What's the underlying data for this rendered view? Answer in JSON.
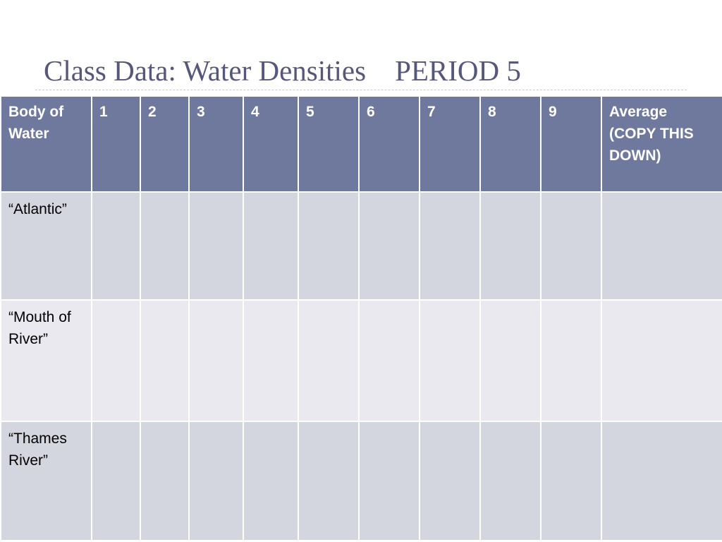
{
  "slide": {
    "title": "Class Data: Water Densities    PERIOD 5"
  },
  "table": {
    "headers": [
      "Body of Water",
      "1",
      "2",
      "3",
      "4",
      "5",
      "6",
      "7",
      "8",
      "9",
      "Average (COPY THIS DOWN)"
    ],
    "rows": [
      {
        "name": "“Atlantic”",
        "values": [
          "",
          "",
          "",
          "",
          "",
          "",
          "",
          "",
          "",
          ""
        ]
      },
      {
        "name": "“Mouth of River”",
        "values": [
          "",
          "",
          "",
          "",
          "",
          "",
          "",
          "",
          "",
          ""
        ]
      },
      {
        "name": "“Thames River”",
        "values": [
          "",
          "",
          "",
          "",
          "",
          "",
          "",
          "",
          "",
          ""
        ]
      }
    ]
  },
  "colors": {
    "title_text": "#55587a",
    "header_background": "#6f799e",
    "row_band_dark": "#d3d6df",
    "row_band_light": "#e9e9ef"
  }
}
